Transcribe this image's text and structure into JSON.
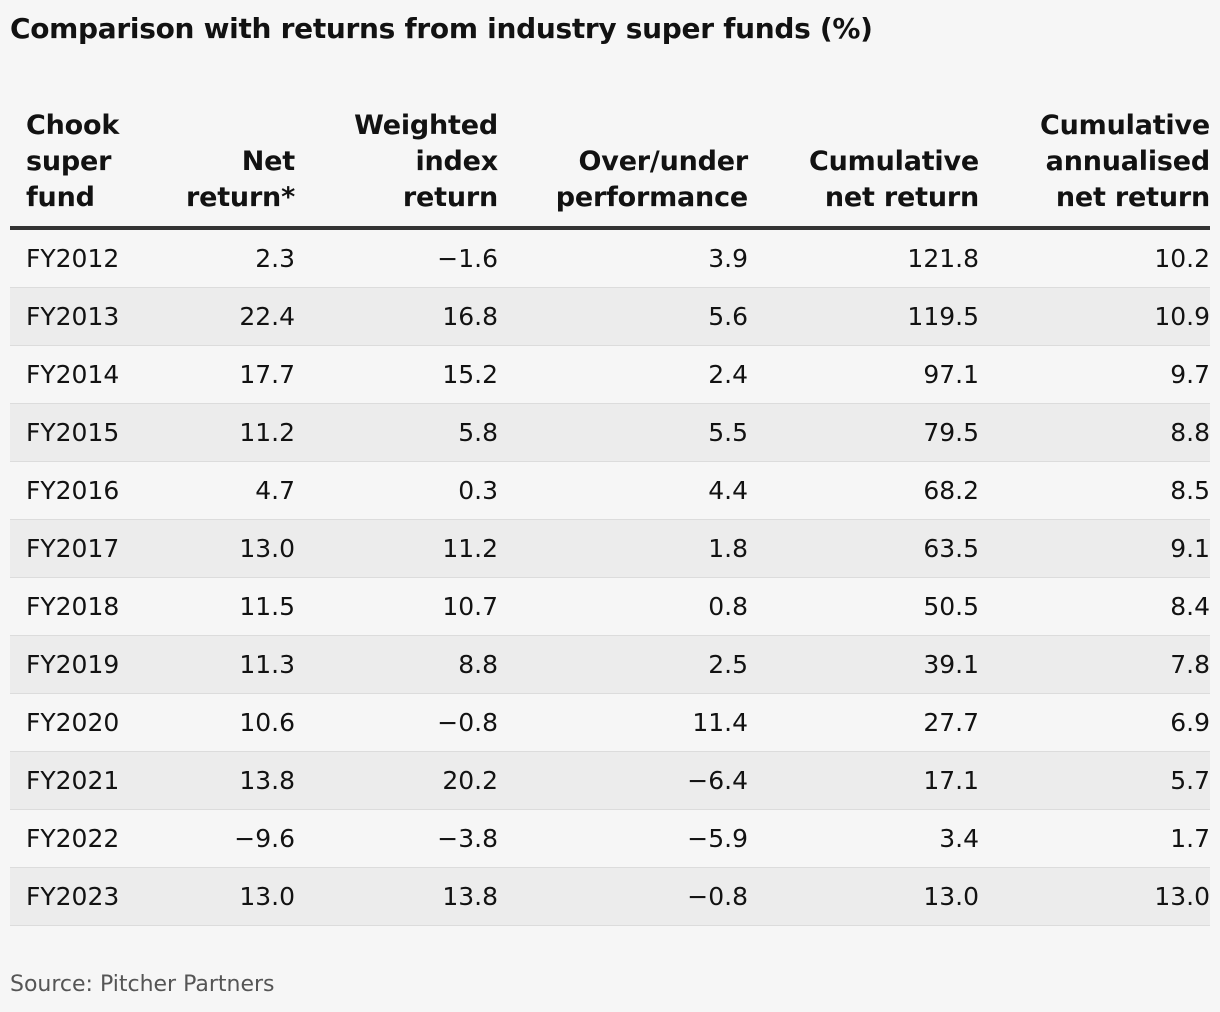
{
  "chart_data": {
    "type": "table",
    "title": "Comparison with returns from industry super funds (%)",
    "columns": [
      [
        "Chook",
        "super",
        "fund"
      ],
      [
        "Net",
        "return*"
      ],
      [
        "Weighted",
        "index",
        "return"
      ],
      [
        "Over/under",
        "performance"
      ],
      [
        "Cumulative",
        "net return"
      ],
      [
        "Cumulative",
        "annualised",
        "net return"
      ]
    ],
    "rows": [
      [
        "FY2012",
        "2.3",
        "−1.6",
        "3.9",
        "121.8",
        "10.2"
      ],
      [
        "FY2013",
        "22.4",
        "16.8",
        "5.6",
        "119.5",
        "10.9"
      ],
      [
        "FY2014",
        "17.7",
        "15.2",
        "2.4",
        "97.1",
        "9.7"
      ],
      [
        "FY2015",
        "11.2",
        "5.8",
        "5.5",
        "79.5",
        "8.8"
      ],
      [
        "FY2016",
        "4.7",
        "0.3",
        "4.4",
        "68.2",
        "8.5"
      ],
      [
        "FY2017",
        "13.0",
        "11.2",
        "1.8",
        "63.5",
        "9.1"
      ],
      [
        "FY2018",
        "11.5",
        "10.7",
        "0.8",
        "50.5",
        "8.4"
      ],
      [
        "FY2019",
        "11.3",
        "8.8",
        "2.5",
        "39.1",
        "7.8"
      ],
      [
        "FY2020",
        "10.6",
        "−0.8",
        "11.4",
        "27.7",
        "6.9"
      ],
      [
        "FY2021",
        "13.8",
        "20.2",
        "−6.4",
        "17.1",
        "5.7"
      ],
      [
        "FY2022",
        "−9.6",
        "−3.8",
        "−5.9",
        "3.4",
        "1.7"
      ],
      [
        "FY2023",
        "13.0",
        "13.8",
        "−0.8",
        "13.0",
        "13.0"
      ]
    ],
    "source": "Source: Pitcher Partners"
  }
}
